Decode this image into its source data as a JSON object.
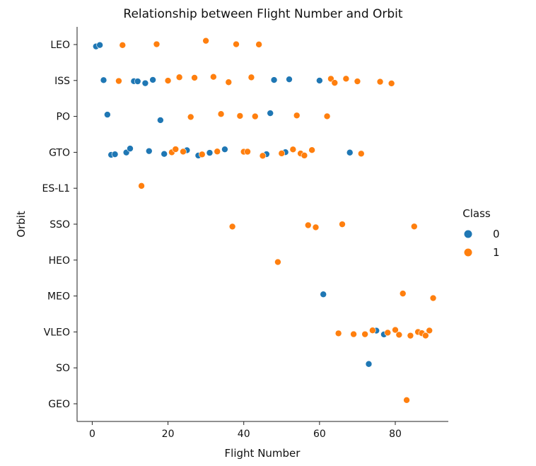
{
  "chart_data": {
    "type": "scatter",
    "title": "Relationship between Flight Number and Orbit",
    "xlabel": "Flight Number",
    "ylabel": "Orbit",
    "xlim": [
      -4,
      94
    ],
    "xticks": [
      "0",
      "20",
      "40",
      "60",
      "80"
    ],
    "xtick_values": [
      0,
      20,
      40,
      60,
      80
    ],
    "categories": [
      "LEO",
      "ISS",
      "PO",
      "GTO",
      "ES-L1",
      "SSO",
      "HEO",
      "MEO",
      "VLEO",
      "SO",
      "GEO"
    ],
    "legend": {
      "title": "Class",
      "placement": "right",
      "entries": [
        "0",
        "1"
      ]
    },
    "colors": {
      "0": "#1f77b4",
      "1": "#ff7f0e"
    },
    "grid": false,
    "series": [
      {
        "name": "0",
        "points": [
          {
            "x": 1,
            "y": "LEO"
          },
          {
            "x": 2,
            "y": "LEO"
          },
          {
            "x": 3,
            "y": "ISS"
          },
          {
            "x": 11,
            "y": "ISS"
          },
          {
            "x": 12,
            "y": "ISS"
          },
          {
            "x": 14,
            "y": "ISS"
          },
          {
            "x": 16,
            "y": "ISS"
          },
          {
            "x": 48,
            "y": "ISS"
          },
          {
            "x": 52,
            "y": "ISS"
          },
          {
            "x": 60,
            "y": "ISS"
          },
          {
            "x": 4,
            "y": "PO"
          },
          {
            "x": 18,
            "y": "PO"
          },
          {
            "x": 47,
            "y": "PO"
          },
          {
            "x": 5,
            "y": "GTO"
          },
          {
            "x": 6,
            "y": "GTO"
          },
          {
            "x": 9,
            "y": "GTO"
          },
          {
            "x": 10,
            "y": "GTO"
          },
          {
            "x": 15,
            "y": "GTO"
          },
          {
            "x": 19,
            "y": "GTO"
          },
          {
            "x": 25,
            "y": "GTO"
          },
          {
            "x": 28,
            "y": "GTO"
          },
          {
            "x": 31,
            "y": "GTO"
          },
          {
            "x": 35,
            "y": "GTO"
          },
          {
            "x": 46,
            "y": "GTO"
          },
          {
            "x": 51,
            "y": "GTO"
          },
          {
            "x": 68,
            "y": "GTO"
          },
          {
            "x": 61,
            "y": "MEO"
          },
          {
            "x": 75,
            "y": "VLEO"
          },
          {
            "x": 77,
            "y": "VLEO"
          },
          {
            "x": 73,
            "y": "SO"
          }
        ]
      },
      {
        "name": "1",
        "points": [
          {
            "x": 8,
            "y": "LEO"
          },
          {
            "x": 17,
            "y": "LEO"
          },
          {
            "x": 30,
            "y": "LEO"
          },
          {
            "x": 38,
            "y": "LEO"
          },
          {
            "x": 44,
            "y": "LEO"
          },
          {
            "x": 7,
            "y": "ISS"
          },
          {
            "x": 20,
            "y": "ISS"
          },
          {
            "x": 23,
            "y": "ISS"
          },
          {
            "x": 27,
            "y": "ISS"
          },
          {
            "x": 32,
            "y": "ISS"
          },
          {
            "x": 36,
            "y": "ISS"
          },
          {
            "x": 42,
            "y": "ISS"
          },
          {
            "x": 63,
            "y": "ISS"
          },
          {
            "x": 64,
            "y": "ISS"
          },
          {
            "x": 67,
            "y": "ISS"
          },
          {
            "x": 70,
            "y": "ISS"
          },
          {
            "x": 76,
            "y": "ISS"
          },
          {
            "x": 79,
            "y": "ISS"
          },
          {
            "x": 26,
            "y": "PO"
          },
          {
            "x": 34,
            "y": "PO"
          },
          {
            "x": 39,
            "y": "PO"
          },
          {
            "x": 43,
            "y": "PO"
          },
          {
            "x": 54,
            "y": "PO"
          },
          {
            "x": 62,
            "y": "PO"
          },
          {
            "x": 21,
            "y": "GTO"
          },
          {
            "x": 22,
            "y": "GTO"
          },
          {
            "x": 24,
            "y": "GTO"
          },
          {
            "x": 29,
            "y": "GTO"
          },
          {
            "x": 33,
            "y": "GTO"
          },
          {
            "x": 40,
            "y": "GTO"
          },
          {
            "x": 41,
            "y": "GTO"
          },
          {
            "x": 45,
            "y": "GTO"
          },
          {
            "x": 50,
            "y": "GTO"
          },
          {
            "x": 53,
            "y": "GTO"
          },
          {
            "x": 55,
            "y": "GTO"
          },
          {
            "x": 56,
            "y": "GTO"
          },
          {
            "x": 58,
            "y": "GTO"
          },
          {
            "x": 71,
            "y": "GTO"
          },
          {
            "x": 13,
            "y": "ES-L1"
          },
          {
            "x": 37,
            "y": "SSO"
          },
          {
            "x": 57,
            "y": "SSO"
          },
          {
            "x": 59,
            "y": "SSO"
          },
          {
            "x": 66,
            "y": "SSO"
          },
          {
            "x": 85,
            "y": "SSO"
          },
          {
            "x": 49,
            "y": "HEO"
          },
          {
            "x": 82,
            "y": "MEO"
          },
          {
            "x": 90,
            "y": "MEO"
          },
          {
            "x": 65,
            "y": "VLEO"
          },
          {
            "x": 69,
            "y": "VLEO"
          },
          {
            "x": 72,
            "y": "VLEO"
          },
          {
            "x": 74,
            "y": "VLEO"
          },
          {
            "x": 78,
            "y": "VLEO"
          },
          {
            "x": 80,
            "y": "VLEO"
          },
          {
            "x": 81,
            "y": "VLEO"
          },
          {
            "x": 84,
            "y": "VLEO"
          },
          {
            "x": 86,
            "y": "VLEO"
          },
          {
            "x": 87,
            "y": "VLEO"
          },
          {
            "x": 88,
            "y": "VLEO"
          },
          {
            "x": 89,
            "y": "VLEO"
          },
          {
            "x": 83,
            "y": "GEO"
          }
        ]
      }
    ]
  }
}
